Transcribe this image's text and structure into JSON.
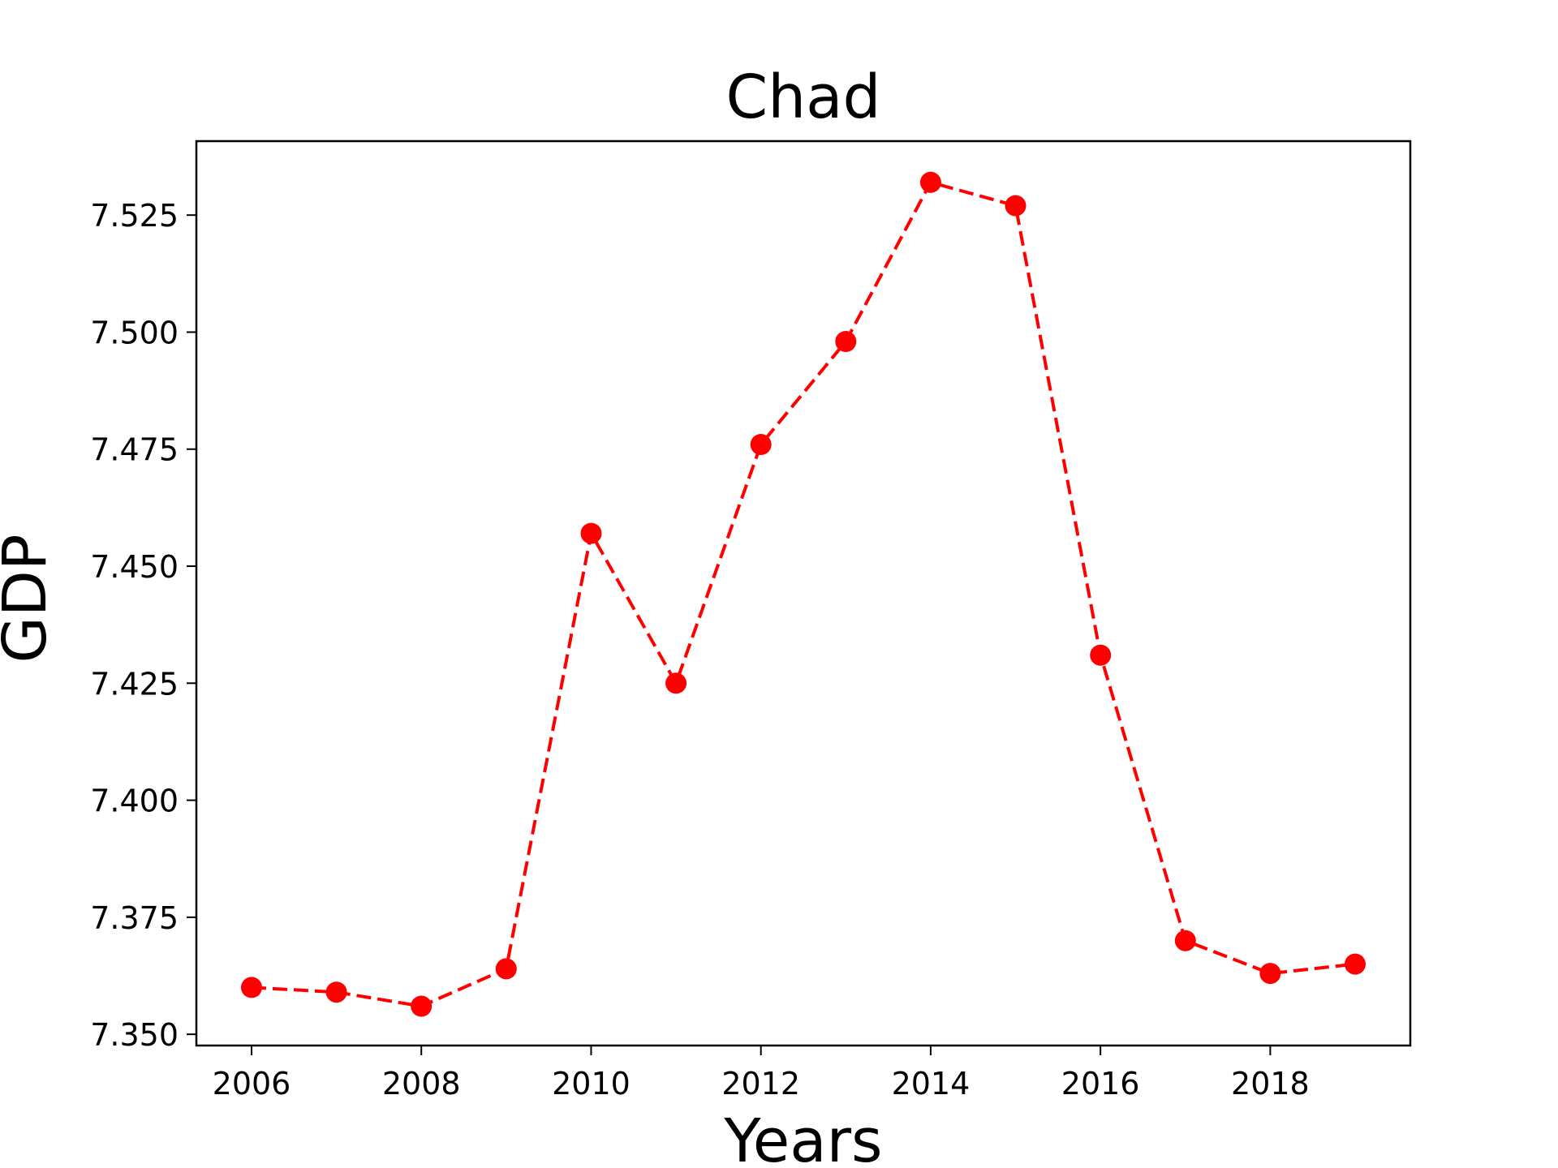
{
  "chart_data": {
    "type": "line",
    "title": "Chad",
    "xlabel": "Years",
    "ylabel": "GDP",
    "x": [
      2006,
      2007,
      2008,
      2009,
      2010,
      2011,
      2012,
      2013,
      2014,
      2015,
      2016,
      2017,
      2018,
      2019
    ],
    "series": [
      {
        "values": [
          7.36,
          7.359,
          7.356,
          7.364,
          7.457,
          7.425,
          7.476,
          7.498,
          7.532,
          7.527,
          7.431,
          7.37,
          7.363,
          7.365
        ],
        "color": "#ff0000",
        "line_style": "dashed",
        "marker": "circle"
      }
    ],
    "xlim": [
      2005.35,
      2019.65
    ],
    "ylim": [
      7.3476,
      7.5408
    ],
    "xticks": [
      2006,
      2008,
      2010,
      2012,
      2014,
      2016,
      2018
    ],
    "xtick_labels": [
      "2006",
      "2008",
      "2010",
      "2012",
      "2014",
      "2016",
      "2018"
    ],
    "yticks": [
      7.35,
      7.375,
      7.4,
      7.425,
      7.45,
      7.475,
      7.5,
      7.525
    ],
    "ytick_labels": [
      "7.350",
      "7.375",
      "7.400",
      "7.425",
      "7.450",
      "7.475",
      "7.500",
      "7.525"
    ],
    "grid": false,
    "legend": "none"
  }
}
